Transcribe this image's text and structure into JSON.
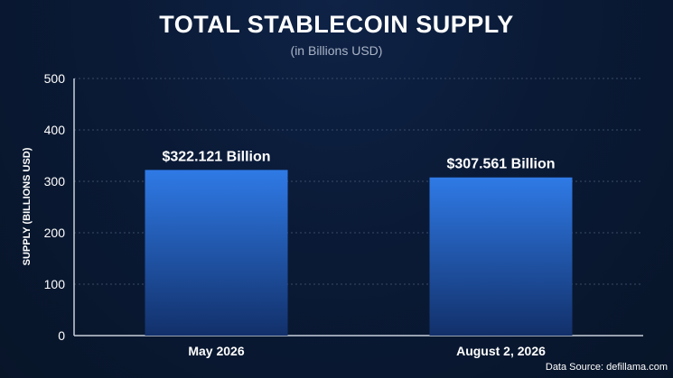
{
  "chart_data": {
    "type": "bar",
    "title": "TOTAL STABLECOIN SUPPLY",
    "subtitle": "(in Billions USD)",
    "ylabel": "SUPPLY (BILLIONS USD)",
    "xlabel": "",
    "categories": [
      "May 2026",
      "August 2, 2026"
    ],
    "values": [
      322.121,
      307.561
    ],
    "data_labels": [
      "$322.121 Billion",
      "$307.561 Billion"
    ],
    "ylim": [
      0,
      500
    ],
    "yticks": [
      0,
      100,
      200,
      300,
      400,
      500
    ],
    "grid": true,
    "bar_color_top": "#2f7ae6",
    "bar_color_bottom": "#12306a"
  },
  "footer": {
    "source": "Data Source: defillama.com"
  }
}
